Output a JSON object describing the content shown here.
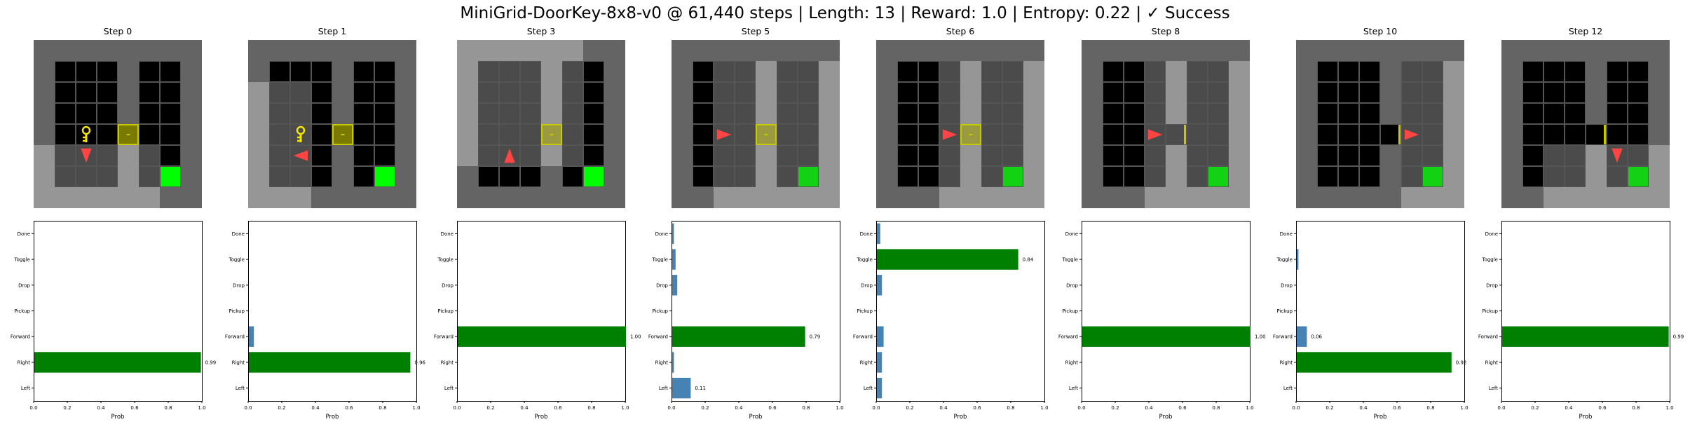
{
  "title": "MiniGrid-DoorKey-8x8-v0 @ 61,440 steps | Length: 13 | Reward: 1.0 | Entropy: 0.22 | ✓ Success",
  "colors": {
    "wall": "#646464",
    "floor": "#000000",
    "seen_wall": "#969696",
    "seen_floor": "#4b4b4b",
    "grid_line": "#555555",
    "agent": "#ff4444",
    "key": "#f5e600",
    "door": "#c8c800",
    "goal": "#00ff00",
    "bar_selected": "#008000",
    "bar_other": "#4682b4"
  },
  "chart_data": [
    {
      "type": "bar",
      "orientation": "horizontal",
      "title": "Step 0",
      "xlabel": "Prob",
      "xlim": [
        0,
        1
      ],
      "xticks": [
        "0.0",
        "0.2",
        "0.4",
        "0.6",
        "0.8",
        "1.0"
      ],
      "categories": [
        "Left",
        "Right",
        "Forward",
        "Pickup",
        "Drop",
        "Toggle",
        "Done"
      ],
      "values": [
        0,
        0.99,
        0,
        0,
        0,
        0,
        0
      ],
      "selected": "Right",
      "labels": {
        "Right": "0.99"
      },
      "agent": {
        "col": 2,
        "row": 5,
        "dir": "down"
      },
      "key": true,
      "door": "locked"
    },
    {
      "type": "bar",
      "orientation": "horizontal",
      "title": "Step 1",
      "xlabel": "Prob",
      "xlim": [
        0,
        1
      ],
      "xticks": [
        "0.0",
        "0.2",
        "0.4",
        "0.6",
        "0.8",
        "1.0"
      ],
      "categories": [
        "Left",
        "Right",
        "Forward",
        "Pickup",
        "Drop",
        "Toggle",
        "Done"
      ],
      "values": [
        0,
        0.96,
        0.03,
        0,
        0,
        0,
        0
      ],
      "selected": "Right",
      "labels": {
        "Right": "0.96"
      },
      "agent": {
        "col": 2,
        "row": 5,
        "dir": "left"
      },
      "key": true,
      "door": "locked"
    },
    {
      "type": "bar",
      "orientation": "horizontal",
      "title": "Step 3",
      "xlabel": "Prob",
      "xlim": [
        0,
        1
      ],
      "xticks": [
        "0.0",
        "0.2",
        "0.4",
        "0.6",
        "0.8",
        "1.0"
      ],
      "categories": [
        "Left",
        "Right",
        "Forward",
        "Pickup",
        "Drop",
        "Toggle",
        "Done"
      ],
      "values": [
        0,
        0,
        1.0,
        0,
        0,
        0,
        0
      ],
      "selected": "Forward",
      "labels": {
        "Forward": "1.00"
      },
      "agent": {
        "col": 2,
        "row": 5,
        "dir": "up"
      },
      "key": false,
      "door": "locked"
    },
    {
      "type": "bar",
      "orientation": "horizontal",
      "title": "Step 5",
      "xlabel": "Prob",
      "xlim": [
        0,
        1
      ],
      "xticks": [
        "0.0",
        "0.2",
        "0.4",
        "0.6",
        "0.8",
        "1.0"
      ],
      "categories": [
        "Left",
        "Right",
        "Forward",
        "Pickup",
        "Drop",
        "Toggle",
        "Done"
      ],
      "values": [
        0.11,
        0.01,
        0.79,
        0,
        0.03,
        0.02,
        0.01
      ],
      "selected": "Forward",
      "labels": {
        "Forward": "0.79",
        "Left": "0.11"
      },
      "agent": {
        "col": 2,
        "row": 4,
        "dir": "right"
      },
      "key": false,
      "door": "locked"
    },
    {
      "type": "bar",
      "orientation": "horizontal",
      "title": "Step 6",
      "xlabel": "Prob",
      "xlim": [
        0,
        1
      ],
      "xticks": [
        "0.0",
        "0.2",
        "0.4",
        "0.6",
        "0.8",
        "1.0"
      ],
      "categories": [
        "Left",
        "Right",
        "Forward",
        "Pickup",
        "Drop",
        "Toggle",
        "Done"
      ],
      "values": [
        0.03,
        0.03,
        0.04,
        0,
        0.03,
        0.84,
        0.02
      ],
      "selected": "Toggle",
      "labels": {
        "Toggle": "0.84"
      },
      "agent": {
        "col": 3,
        "row": 4,
        "dir": "right"
      },
      "key": false,
      "door": "locked"
    },
    {
      "type": "bar",
      "orientation": "horizontal",
      "title": "Step 8",
      "xlabel": "Prob",
      "xlim": [
        0,
        1
      ],
      "xticks": [
        "0.0",
        "0.2",
        "0.4",
        "0.6",
        "0.8",
        "1.0"
      ],
      "categories": [
        "Left",
        "Right",
        "Forward",
        "Pickup",
        "Drop",
        "Toggle",
        "Done"
      ],
      "values": [
        0,
        0,
        1.0,
        0,
        0,
        0,
        0
      ],
      "selected": "Forward",
      "labels": {
        "Forward": "1.00"
      },
      "agent": {
        "col": 3,
        "row": 4,
        "dir": "right"
      },
      "key": false,
      "door": "open"
    },
    {
      "type": "bar",
      "orientation": "horizontal",
      "title": "Step 10",
      "xlabel": "Prob",
      "xlim": [
        0,
        1
      ],
      "xticks": [
        "0.0",
        "0.2",
        "0.4",
        "0.6",
        "0.8",
        "1.0"
      ],
      "categories": [
        "Left",
        "Right",
        "Forward",
        "Pickup",
        "Drop",
        "Toggle",
        "Done"
      ],
      "values": [
        0,
        0.92,
        0.06,
        0,
        0,
        0.01,
        0
      ],
      "selected": "Right",
      "labels": {
        "Right": "0.92",
        "Forward": "0.06"
      },
      "agent": {
        "col": 5,
        "row": 4,
        "dir": "right"
      },
      "key": false,
      "door": "open"
    },
    {
      "type": "bar",
      "orientation": "horizontal",
      "title": "Step 12",
      "xlabel": "Prob",
      "xlim": [
        0,
        1
      ],
      "xticks": [
        "0.0",
        "0.2",
        "0.4",
        "0.6",
        "0.8",
        "1.0"
      ],
      "categories": [
        "Left",
        "Right",
        "Forward",
        "Pickup",
        "Drop",
        "Toggle",
        "Done"
      ],
      "values": [
        0,
        0,
        0.99,
        0,
        0,
        0,
        0
      ],
      "selected": "Forward",
      "labels": {
        "Forward": "0.99"
      },
      "agent": {
        "col": 5,
        "row": 5,
        "dir": "down"
      },
      "key": false,
      "door": "open"
    }
  ]
}
